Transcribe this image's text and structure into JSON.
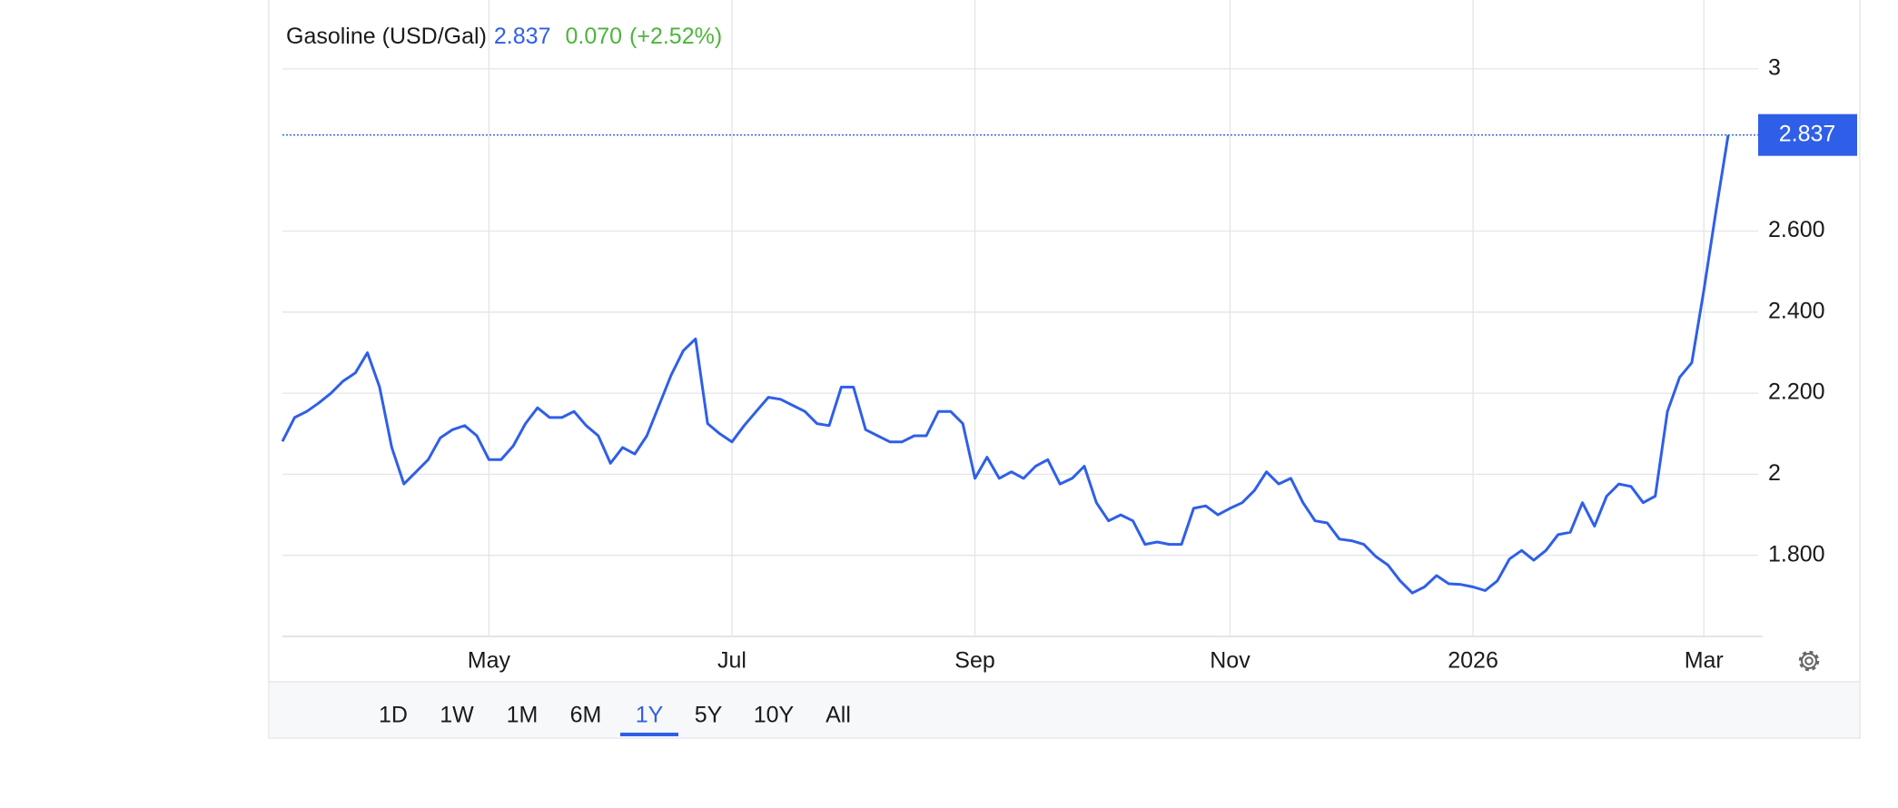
{
  "chart_data": {
    "type": "line",
    "title": "Gasoline (USD/Gal)",
    "change": "0.070",
    "change_percent": "(+2.52%)",
    "categories": [
      null,
      null,
      null,
      null,
      null,
      null,
      null,
      null,
      null,
      null,
      null,
      null,
      null,
      null,
      null,
      null,
      null,
      "May",
      null,
      null,
      null,
      null,
      null,
      null,
      null,
      null,
      null,
      null,
      null,
      null,
      null,
      null,
      null,
      null,
      null,
      null,
      null,
      "Jul",
      null,
      null,
      null,
      null,
      null,
      null,
      null,
      null,
      null,
      null,
      null,
      null,
      null,
      null,
      null,
      null,
      null,
      null,
      null,
      "Sep",
      null,
      null,
      null,
      null,
      null,
      null,
      null,
      null,
      null,
      null,
      null,
      null,
      null,
      null,
      null,
      null,
      null,
      null,
      null,
      null,
      "Nov",
      null,
      null,
      null,
      null,
      null,
      null,
      null,
      null,
      null,
      null,
      null,
      null,
      null,
      null,
      null,
      null,
      null,
      null,
      null,
      "2026",
      null,
      null,
      null,
      null,
      null,
      null,
      null,
      null,
      null,
      null,
      null,
      null,
      null,
      null,
      null,
      null,
      null,
      null,
      "Mar",
      null,
      null
    ],
    "values": [
      2.081,
      2.14,
      2.155,
      2.176,
      2.2,
      2.23,
      2.25,
      2.3,
      2.215,
      2.066,
      1.976,
      2.006,
      2.036,
      2.09,
      2.11,
      2.12,
      2.095,
      2.036,
      2.036,
      2.07,
      2.125,
      2.164,
      2.14,
      2.14,
      2.155,
      2.12,
      2.095,
      2.027,
      2.066,
      2.05,
      2.095,
      2.17,
      2.245,
      2.305,
      2.334,
      2.125,
      2.1,
      2.08,
      2.12,
      2.155,
      2.19,
      2.185,
      2.17,
      2.155,
      2.125,
      2.12,
      2.215,
      2.215,
      2.11,
      2.095,
      2.08,
      2.08,
      2.095,
      2.095,
      2.155,
      2.155,
      2.125,
      1.99,
      2.042,
      1.99,
      2.006,
      1.99,
      2.02,
      2.036,
      1.976,
      1.99,
      2.02,
      1.93,
      1.885,
      1.9,
      1.885,
      1.827,
      1.833,
      1.827,
      1.827,
      1.916,
      1.922,
      1.9,
      1.916,
      1.93,
      1.96,
      2.006,
      1.976,
      1.99,
      1.93,
      1.885,
      1.88,
      1.84,
      1.836,
      1.827,
      1.797,
      1.776,
      1.737,
      1.707,
      1.722,
      1.75,
      1.73,
      1.728,
      1.722,
      1.713,
      1.737,
      1.791,
      1.812,
      1.788,
      1.812,
      1.851,
      1.857,
      1.93,
      1.872,
      1.946,
      1.976,
      1.97,
      1.93,
      1.946,
      2.155,
      2.239,
      2.275,
      2.454,
      2.65,
      2.837
    ],
    "color": "#2f5fe8",
    "change_color": "#4cb53a",
    "ylim": [
      1.6,
      3.17
    ],
    "yticks": [
      {
        "value": 1.8,
        "label": "1.800"
      },
      2,
      {
        "value": 2.2,
        "label": "2.200"
      },
      {
        "value": 2.4,
        "label": "2.400"
      },
      {
        "value": 2.6,
        "label": "2.600"
      },
      3
    ],
    "grid": true,
    "ranges": [
      "1D",
      "1W",
      "1M",
      "6M",
      "1Y",
      "5Y",
      "10Y",
      "All"
    ],
    "active_range": 4
  }
}
